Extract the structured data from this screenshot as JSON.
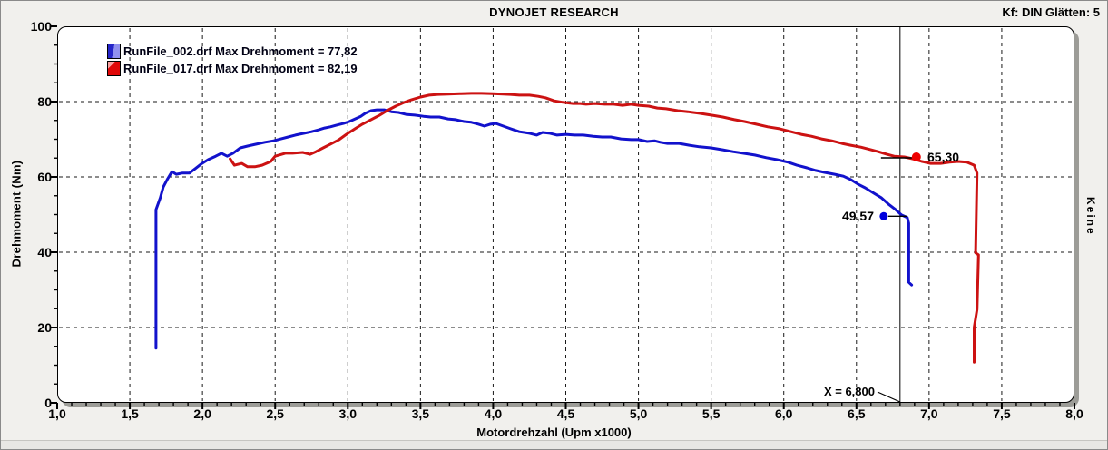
{
  "window": {
    "title": "DYNOJET RESEARCH",
    "settings_label": "Kf: DIN  Glätten: 5",
    "right_side_label": "Keine"
  },
  "chart_data": {
    "type": "line",
    "title": "DYNOJET RESEARCH",
    "xlabel": "Motordrehzahl (Upm x1000)",
    "ylabel": "Drehmoment (Nm)",
    "xlim": [
      1.0,
      8.0
    ],
    "ylim": [
      0,
      100
    ],
    "grid": "dashed",
    "legend_position": "top-left",
    "x_tick_labels": [
      "1,0",
      "1,5",
      "2,0",
      "2,5",
      "3,0",
      "3,5",
      "4,0",
      "4,5",
      "5,0",
      "5,5",
      "6,0",
      "6,5",
      "7,0",
      "7,5",
      "8,0"
    ],
    "y_tick_labels": [
      "0",
      "20",
      "40",
      "60",
      "80",
      "100"
    ],
    "series": [
      {
        "name": "RunFile_002.drf",
        "legend_label": "RunFile_002.drf Max Drehmoment = 77,82",
        "max_value": 77.82,
        "color": "#1212cc",
        "points": [
          [
            1.68,
            14.5
          ],
          [
            1.68,
            51.3
          ],
          [
            1.71,
            54.5
          ],
          [
            1.73,
            57.3
          ],
          [
            1.76,
            59.5
          ],
          [
            1.79,
            61.4
          ],
          [
            1.82,
            60.7
          ],
          [
            1.86,
            61.0
          ],
          [
            1.91,
            61.0
          ],
          [
            1.95,
            62.2
          ],
          [
            1.99,
            63.4
          ],
          [
            2.04,
            64.6
          ],
          [
            2.09,
            65.5
          ],
          [
            2.13,
            66.3
          ],
          [
            2.17,
            65.5
          ],
          [
            2.21,
            66.3
          ],
          [
            2.26,
            67.7
          ],
          [
            2.31,
            68.2
          ],
          [
            2.37,
            68.7
          ],
          [
            2.43,
            69.2
          ],
          [
            2.49,
            69.6
          ],
          [
            2.54,
            70.1
          ],
          [
            2.59,
            70.6
          ],
          [
            2.64,
            71.1
          ],
          [
            2.7,
            71.6
          ],
          [
            2.75,
            72.0
          ],
          [
            2.8,
            72.5
          ],
          [
            2.84,
            73.0
          ],
          [
            2.88,
            73.3
          ],
          [
            2.92,
            73.7
          ],
          [
            2.97,
            74.2
          ],
          [
            3.01,
            74.7
          ],
          [
            3.05,
            75.4
          ],
          [
            3.09,
            76.1
          ],
          [
            3.12,
            76.9
          ],
          [
            3.16,
            77.6
          ],
          [
            3.2,
            77.8
          ],
          [
            3.25,
            77.8
          ],
          [
            3.3,
            77.3
          ],
          [
            3.35,
            77.1
          ],
          [
            3.4,
            76.6
          ],
          [
            3.46,
            76.4
          ],
          [
            3.52,
            76.1
          ],
          [
            3.57,
            75.9
          ],
          [
            3.63,
            75.9
          ],
          [
            3.69,
            75.4
          ],
          [
            3.74,
            75.2
          ],
          [
            3.8,
            74.7
          ],
          [
            3.85,
            74.5
          ],
          [
            3.9,
            74.0
          ],
          [
            3.94,
            73.5
          ],
          [
            3.98,
            74.0
          ],
          [
            4.02,
            74.2
          ],
          [
            4.07,
            73.5
          ],
          [
            4.12,
            72.8
          ],
          [
            4.18,
            72.0
          ],
          [
            4.25,
            71.6
          ],
          [
            4.3,
            71.1
          ],
          [
            4.34,
            71.8
          ],
          [
            4.39,
            71.6
          ],
          [
            4.44,
            71.1
          ],
          [
            4.5,
            71.3
          ],
          [
            4.56,
            71.1
          ],
          [
            4.62,
            71.1
          ],
          [
            4.69,
            70.8
          ],
          [
            4.75,
            70.6
          ],
          [
            4.81,
            70.6
          ],
          [
            4.88,
            70.1
          ],
          [
            4.95,
            69.9
          ],
          [
            5.0,
            69.9
          ],
          [
            5.06,
            69.4
          ],
          [
            5.11,
            69.6
          ],
          [
            5.15,
            69.2
          ],
          [
            5.2,
            68.9
          ],
          [
            5.28,
            68.9
          ],
          [
            5.35,
            68.4
          ],
          [
            5.42,
            68.0
          ],
          [
            5.5,
            67.7
          ],
          [
            5.58,
            67.2
          ],
          [
            5.65,
            66.7
          ],
          [
            5.72,
            66.3
          ],
          [
            5.8,
            65.8
          ],
          [
            5.88,
            65.1
          ],
          [
            5.95,
            64.6
          ],
          [
            6.03,
            63.9
          ],
          [
            6.09,
            63.1
          ],
          [
            6.16,
            62.4
          ],
          [
            6.22,
            61.7
          ],
          [
            6.28,
            61.2
          ],
          [
            6.35,
            60.7
          ],
          [
            6.41,
            60.2
          ],
          [
            6.46,
            59.3
          ],
          [
            6.51,
            58.1
          ],
          [
            6.56,
            57.1
          ],
          [
            6.61,
            55.9
          ],
          [
            6.67,
            54.5
          ],
          [
            6.72,
            52.8
          ],
          [
            6.77,
            51.3
          ],
          [
            6.81,
            49.9
          ],
          [
            6.85,
            49.2
          ],
          [
            6.86,
            47.7
          ],
          [
            6.86,
            32.0
          ],
          [
            6.88,
            31.3
          ]
        ]
      },
      {
        "name": "RunFile_017.drf",
        "legend_label": "RunFile_017.drf Max Drehmoment = 82,19",
        "max_value": 82.19,
        "color": "#cc1212",
        "points": [
          [
            2.19,
            64.8
          ],
          [
            2.22,
            63.1
          ],
          [
            2.27,
            63.6
          ],
          [
            2.31,
            62.7
          ],
          [
            2.36,
            62.7
          ],
          [
            2.41,
            63.1
          ],
          [
            2.47,
            64.1
          ],
          [
            2.5,
            65.5
          ],
          [
            2.57,
            66.3
          ],
          [
            2.62,
            66.3
          ],
          [
            2.69,
            66.5
          ],
          [
            2.74,
            66.0
          ],
          [
            2.78,
            66.7
          ],
          [
            2.83,
            67.7
          ],
          [
            2.88,
            68.7
          ],
          [
            2.94,
            69.9
          ],
          [
            2.99,
            71.3
          ],
          [
            3.05,
            72.8
          ],
          [
            3.1,
            74.0
          ],
          [
            3.16,
            75.2
          ],
          [
            3.22,
            76.4
          ],
          [
            3.27,
            77.6
          ],
          [
            3.33,
            78.8
          ],
          [
            3.39,
            79.8
          ],
          [
            3.44,
            80.5
          ],
          [
            3.5,
            81.2
          ],
          [
            3.56,
            81.7
          ],
          [
            3.62,
            81.9
          ],
          [
            3.69,
            82.0
          ],
          [
            3.77,
            82.1
          ],
          [
            3.85,
            82.2
          ],
          [
            3.92,
            82.2
          ],
          [
            4.0,
            82.1
          ],
          [
            4.07,
            82.0
          ],
          [
            4.12,
            81.9
          ],
          [
            4.18,
            81.7
          ],
          [
            4.25,
            81.7
          ],
          [
            4.31,
            81.4
          ],
          [
            4.36,
            81.0
          ],
          [
            4.42,
            80.2
          ],
          [
            4.48,
            79.8
          ],
          [
            4.55,
            79.5
          ],
          [
            4.6,
            79.5
          ],
          [
            4.64,
            79.3
          ],
          [
            4.7,
            79.5
          ],
          [
            4.77,
            79.3
          ],
          [
            4.83,
            79.3
          ],
          [
            4.89,
            79.0
          ],
          [
            4.95,
            79.3
          ],
          [
            5.0,
            79.0
          ],
          [
            5.07,
            78.8
          ],
          [
            5.13,
            78.3
          ],
          [
            5.19,
            78.1
          ],
          [
            5.27,
            77.6
          ],
          [
            5.34,
            77.3
          ],
          [
            5.42,
            76.9
          ],
          [
            5.5,
            76.4
          ],
          [
            5.58,
            75.9
          ],
          [
            5.66,
            75.2
          ],
          [
            5.73,
            74.7
          ],
          [
            5.81,
            74.0
          ],
          [
            5.89,
            73.3
          ],
          [
            5.97,
            72.8
          ],
          [
            6.05,
            72.0
          ],
          [
            6.12,
            71.3
          ],
          [
            6.19,
            70.8
          ],
          [
            6.26,
            70.1
          ],
          [
            6.33,
            69.6
          ],
          [
            6.4,
            68.9
          ],
          [
            6.46,
            68.4
          ],
          [
            6.53,
            67.9
          ],
          [
            6.6,
            67.2
          ],
          [
            6.65,
            66.7
          ],
          [
            6.71,
            66.0
          ],
          [
            6.76,
            65.5
          ],
          [
            6.83,
            65.3
          ],
          [
            6.89,
            64.8
          ],
          [
            6.95,
            64.1
          ],
          [
            7.01,
            63.6
          ],
          [
            7.08,
            63.6
          ],
          [
            7.14,
            63.9
          ],
          [
            7.2,
            64.1
          ],
          [
            7.26,
            63.9
          ],
          [
            7.31,
            63.1
          ],
          [
            7.33,
            61.0
          ],
          [
            7.32,
            39.8
          ],
          [
            7.34,
            39.3
          ],
          [
            7.33,
            24.8
          ],
          [
            7.31,
            20.0
          ],
          [
            7.31,
            10.8
          ]
        ]
      }
    ],
    "cursor": {
      "x": 6.8,
      "label": "X = 6,800",
      "markers": [
        {
          "series": "RunFile_002.drf",
          "value": 49.57,
          "label": "49,57",
          "color": "#0000dd"
        },
        {
          "series": "RunFile_017.drf",
          "value": 65.3,
          "label": "65,30",
          "color": "#ee0000"
        }
      ]
    }
  }
}
